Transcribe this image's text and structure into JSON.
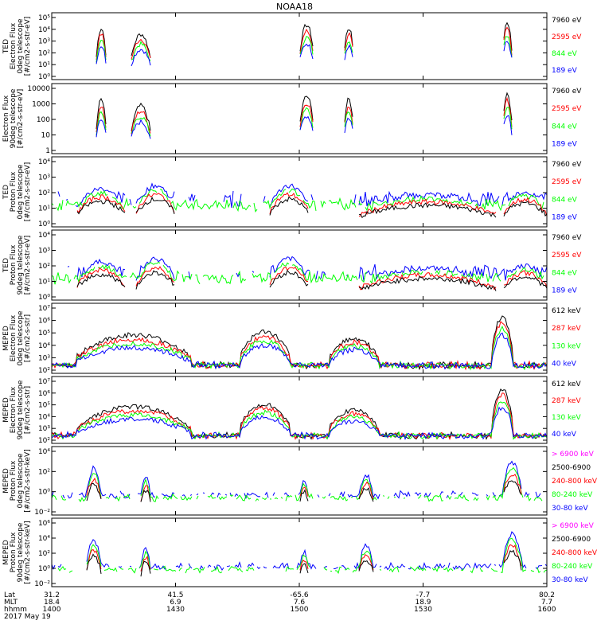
{
  "title": "NOAA18",
  "colors": {
    "black": "#000000",
    "red": "#ff0000",
    "green": "#00ff00",
    "blue": "#0000ff",
    "magenta": "#ff00ff"
  },
  "footer": {
    "rows": [
      {
        "label": "Lat",
        "values": [
          "31.2",
          "41.5",
          "-65.6",
          "-7.7",
          "80.2"
        ]
      },
      {
        "label": "MLT",
        "values": [
          "18.4",
          "6.9",
          "7.6",
          "18.9",
          "7.7"
        ]
      },
      {
        "label": "hhmm",
        "values": [
          "1400",
          "1430",
          "1500",
          "1530",
          "1600"
        ]
      }
    ],
    "date": "2017 May 19"
  },
  "chart_data": [
    {
      "type": "line",
      "ylabel_lines": [
        "TED",
        "Electron Flux",
        "0deg telescope",
        "[#/cm2-s-str-eV]"
      ],
      "log": true,
      "yticks": [
        "10⁰",
        "10¹",
        "10²",
        "10³",
        "10⁴",
        "10⁵"
      ],
      "ylim_exp": [
        0,
        5
      ],
      "legend": [
        {
          "text": "7960 eV",
          "color": "black"
        },
        {
          "text": "2595 eV",
          "color": "red"
        },
        {
          "text": "844 eV",
          "color": "green"
        },
        {
          "text": "189 eV",
          "color": "blue"
        }
      ],
      "x_range_hhmm": [
        "1400",
        "1600"
      ],
      "grid": false
    },
    {
      "type": "line",
      "ylabel_lines": [
        "Electron Flux",
        "90deg telescope",
        "[#/cm2-s-str-eV]"
      ],
      "log": true,
      "yticks": [
        "1",
        "10",
        "100",
        "1000",
        "10000"
      ],
      "ylim_exp": [
        0,
        4
      ],
      "legend": [
        {
          "text": "7960 eV",
          "color": "black"
        },
        {
          "text": "2595 eV",
          "color": "red"
        },
        {
          "text": "844 eV",
          "color": "green"
        },
        {
          "text": "189 eV",
          "color": "blue"
        }
      ],
      "x_range_hhmm": [
        "1400",
        "1600"
      ],
      "grid": false
    },
    {
      "type": "line",
      "ylabel_lines": [
        "TED",
        "Proton Flux",
        "0deg telescope",
        "[#/cm2-s-str-eV]"
      ],
      "log": true,
      "yticks": [
        "10⁰",
        "10¹",
        "10²",
        "10³",
        "10⁴"
      ],
      "ylim_exp": [
        0,
        4
      ],
      "legend": [
        {
          "text": "7960 eV",
          "color": "black"
        },
        {
          "text": "2595 eV",
          "color": "red"
        },
        {
          "text": "844 eV",
          "color": "green"
        },
        {
          "text": "189 eV",
          "color": "blue"
        }
      ],
      "x_range_hhmm": [
        "1400",
        "1600"
      ],
      "grid": false
    },
    {
      "type": "line",
      "ylabel_lines": [
        "TED",
        "Proton Flux",
        "90deg telescope",
        "[#/cm2-s-str-eV]"
      ],
      "log": true,
      "yticks": [
        "10⁰",
        "10¹",
        "10²",
        "10³",
        "10⁴"
      ],
      "ylim_exp": [
        0,
        4
      ],
      "legend": [
        {
          "text": "7960 eV",
          "color": "black"
        },
        {
          "text": "2595 eV",
          "color": "red"
        },
        {
          "text": "844 eV",
          "color": "green"
        },
        {
          "text": "189 eV",
          "color": "blue"
        }
      ],
      "x_range_hhmm": [
        "1400",
        "1600"
      ],
      "grid": false
    },
    {
      "type": "line",
      "ylabel_lines": [
        "MEPED",
        "Electron Flux",
        "0deg telescope",
        "[#/cm2-s-str]"
      ],
      "log": true,
      "yticks": [
        "10²",
        "10³",
        "10⁴",
        "10⁵",
        "10⁶",
        "10⁷"
      ],
      "ylim_exp": [
        2,
        7
      ],
      "legend": [
        {
          "text": "612 keV",
          "color": "black"
        },
        {
          "text": "287 keV",
          "color": "red"
        },
        {
          "text": "130 keV",
          "color": "green"
        },
        {
          "text": "40 keV",
          "color": "blue"
        }
      ],
      "x_range_hhmm": [
        "1400",
        "1600"
      ],
      "grid": false
    },
    {
      "type": "line",
      "ylabel_lines": [
        "MEPED",
        "Electron Flux",
        "90deg telescope",
        "[#/cm2-s-str]"
      ],
      "log": true,
      "yticks": [
        "10²",
        "10³",
        "10⁴",
        "10⁵",
        "10⁶",
        "10⁷"
      ],
      "ylim_exp": [
        2,
        7
      ],
      "legend": [
        {
          "text": "612 keV",
          "color": "black"
        },
        {
          "text": "287 keV",
          "color": "red"
        },
        {
          "text": "130 keV",
          "color": "green"
        },
        {
          "text": "40 keV",
          "color": "blue"
        }
      ],
      "x_range_hhmm": [
        "1400",
        "1600"
      ],
      "grid": false
    },
    {
      "type": "line",
      "ylabel_lines": [
        "MEPED",
        "Proton Flux",
        "0deg telescope",
        "[#/cm2-s-str-keV]"
      ],
      "log": true,
      "yticks": [
        "10⁻²",
        "10⁰",
        "10²",
        "10⁴"
      ],
      "ylim_exp": [
        -2,
        5.5
      ],
      "legend": [
        {
          "text": "> 6900 keV",
          "color": "magenta"
        },
        {
          "text": "2500-6900",
          "color": "black"
        },
        {
          "text": "240-800 keV",
          "color": "red"
        },
        {
          "text": "80-240 keV",
          "color": "green"
        },
        {
          "text": "30-80 keV",
          "color": "blue"
        }
      ],
      "x_range_hhmm": [
        "1400",
        "1600"
      ],
      "grid": false
    },
    {
      "type": "line",
      "ylabel_lines": [
        "MEPED",
        "Proton Flux",
        "90deg telescope",
        "[#/cm2-s-str-keV]"
      ],
      "log": true,
      "yticks": [
        "10⁻²",
        "10⁰",
        "10²",
        "10⁴",
        "10⁶"
      ],
      "ylim_exp": [
        -2,
        6.5
      ],
      "legend": [
        {
          "text": "> 6900 keV",
          "color": "magenta"
        },
        {
          "text": "2500-6900",
          "color": "black"
        },
        {
          "text": "240-800 keV",
          "color": "red"
        },
        {
          "text": "80-240 keV",
          "color": "green"
        },
        {
          "text": "30-80 keV",
          "color": "blue"
        }
      ],
      "x_range_hhmm": [
        "1400",
        "1600"
      ],
      "grid": false
    }
  ]
}
